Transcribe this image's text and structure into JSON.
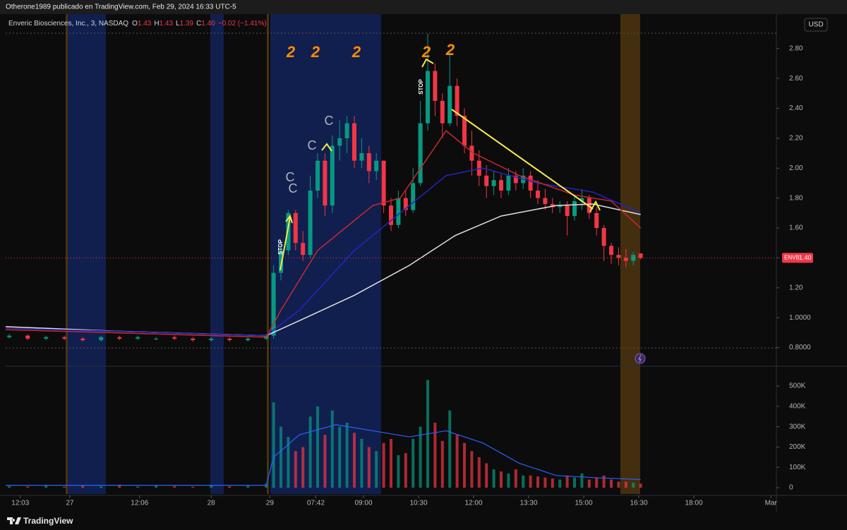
{
  "header": "Otherone1989 publicado en TradingView.com, Feb 29, 2024 16:33 UTC-5",
  "footer": "TradingView",
  "chart_data": [
    {
      "type": "candlestick",
      "legend_title": "Enveric Biosciences, Inc., 3, NASDAQ",
      "ohlc_legend": [
        {
          "key": "O",
          "value": "1.43"
        },
        {
          "key": "H",
          "value": "1.43"
        },
        {
          "key": "L",
          "value": "1.39"
        },
        {
          "key": "C",
          "value": "1.40"
        }
      ],
      "change": "−0.02 (−1.41%)",
      "currency": "USD",
      "symbol": "ENVB",
      "last_price": {
        "value": 1.4,
        "label": "1.40"
      },
      "annotations": [
        "2",
        "2",
        "2",
        "2",
        "2",
        "C",
        "C",
        "C",
        "C",
        "STOP",
        "STOP"
      ],
      "up_color": "#089981",
      "down_color": "#f23645",
      "x": [
        2,
        12,
        22,
        32,
        42,
        52,
        62,
        72,
        82,
        92,
        102,
        112,
        122,
        132,
        142,
        146,
        150,
        154,
        158,
        162,
        166,
        170,
        174,
        178,
        182,
        186,
        190,
        194,
        198,
        202,
        206,
        210,
        214,
        218,
        222,
        226,
        230,
        234,
        238,
        242,
        246,
        250,
        254,
        258,
        262,
        266,
        270,
        274,
        278,
        282,
        286,
        290,
        294,
        298,
        302,
        306,
        310,
        314,
        318,
        322,
        326,
        330,
        334,
        338,
        342,
        346
      ],
      "open": [
        0.87,
        0.88,
        0.86,
        0.87,
        0.86,
        0.85,
        0.87,
        0.86,
        0.86,
        0.87,
        0.86,
        0.85,
        0.86,
        0.85,
        0.86,
        0.88,
        1.3,
        1.45,
        1.7,
        1.5,
        1.42,
        1.85,
        2.05,
        1.75,
        2.15,
        2.2,
        2.3,
        2.05,
        2.1,
        1.98,
        2.05,
        1.75,
        1.62,
        1.8,
        1.72,
        1.9,
        2.3,
        2.65,
        2.45,
        2.3,
        2.55,
        2.35,
        2.15,
        2.05,
        1.95,
        1.88,
        1.92,
        1.85,
        1.95,
        1.9,
        1.95,
        1.85,
        1.8,
        1.76,
        1.74,
        1.75,
        1.68,
        1.78,
        1.8,
        1.7,
        1.6,
        1.48,
        1.42,
        1.4,
        1.38,
        1.43
      ],
      "high": [
        0.89,
        0.89,
        0.88,
        0.88,
        0.87,
        0.88,
        0.88,
        0.88,
        0.87,
        0.88,
        0.87,
        0.87,
        0.87,
        0.87,
        0.89,
        1.35,
        1.5,
        1.72,
        1.72,
        1.58,
        1.95,
        2.1,
        2.1,
        2.22,
        2.32,
        2.35,
        2.35,
        2.2,
        2.15,
        2.1,
        2.05,
        1.8,
        1.85,
        1.85,
        2.0,
        2.45,
        2.9,
        2.7,
        2.5,
        2.78,
        2.6,
        2.4,
        2.25,
        2.12,
        2.02,
        1.98,
        1.96,
        2.0,
        1.98,
        2.0,
        1.98,
        1.92,
        1.86,
        1.8,
        1.78,
        1.78,
        1.82,
        1.86,
        1.82,
        1.74,
        1.62,
        1.5,
        1.47,
        1.46,
        1.44,
        1.43
      ],
      "low": [
        0.86,
        0.85,
        0.85,
        0.85,
        0.84,
        0.84,
        0.85,
        0.85,
        0.85,
        0.85,
        0.84,
        0.84,
        0.84,
        0.84,
        0.85,
        0.86,
        1.25,
        1.42,
        1.45,
        1.38,
        1.4,
        1.8,
        1.68,
        1.7,
        2.05,
        2.1,
        2.0,
        2.0,
        1.9,
        1.92,
        1.7,
        1.58,
        1.6,
        1.68,
        1.7,
        1.88,
        2.25,
        2.35,
        2.2,
        2.28,
        2.28,
        2.1,
        1.95,
        1.88,
        1.8,
        1.82,
        1.8,
        1.82,
        1.85,
        1.86,
        1.8,
        1.76,
        1.72,
        1.7,
        1.7,
        1.55,
        1.65,
        1.72,
        1.66,
        1.55,
        1.38,
        1.36,
        1.35,
        1.34,
        1.35,
        1.39
      ],
      "close": [
        0.88,
        0.86,
        0.87,
        0.86,
        0.85,
        0.87,
        0.86,
        0.87,
        0.86,
        0.86,
        0.85,
        0.86,
        0.85,
        0.86,
        0.88,
        1.3,
        1.45,
        1.7,
        1.5,
        1.42,
        1.85,
        2.05,
        1.75,
        2.15,
        2.2,
        2.3,
        2.05,
        2.1,
        1.98,
        2.05,
        1.75,
        1.62,
        1.8,
        1.72,
        1.9,
        2.3,
        2.65,
        2.45,
        2.3,
        2.55,
        2.35,
        2.15,
        2.05,
        1.95,
        1.88,
        1.92,
        1.85,
        1.95,
        1.9,
        1.95,
        1.85,
        1.8,
        1.76,
        1.74,
        1.75,
        1.68,
        1.78,
        1.8,
        1.7,
        1.6,
        1.48,
        1.42,
        1.4,
        1.38,
        1.42,
        1.4
      ],
      "series": [
        {
          "color": "#e0e0e0",
          "x": [
            0,
            60,
            142,
            160,
            190,
            220,
            245,
            270,
            300,
            320,
            346
          ],
          "values": [
            0.94,
            0.91,
            0.88,
            0.98,
            1.15,
            1.35,
            1.55,
            1.68,
            1.75,
            1.76,
            1.69
          ]
        },
        {
          "color": "#2424c8",
          "x": [
            0,
            142,
            160,
            190,
            210,
            240,
            260,
            290,
            320,
            346
          ],
          "values": [
            0.93,
            0.88,
            1.05,
            1.45,
            1.65,
            1.95,
            2.0,
            1.9,
            1.84,
            1.7
          ]
        },
        {
          "color": "#c8282f",
          "x": [
            0,
            142,
            150,
            170,
            200,
            215,
            240,
            255,
            280,
            310,
            330,
            346
          ],
          "values": [
            0.92,
            0.87,
            1.05,
            1.45,
            1.75,
            1.8,
            2.25,
            2.1,
            1.95,
            1.82,
            1.78,
            1.6
          ]
        }
      ],
      "xlim": [
        0,
        420
      ],
      "xticks": [
        {
          "value": 8,
          "label": "12:03"
        },
        {
          "value": 35,
          "label": "27"
        },
        {
          "value": 73,
          "label": "12:06"
        },
        {
          "value": 112,
          "label": "28"
        },
        {
          "value": 144,
          "label": "29"
        },
        {
          "value": 169,
          "label": "07:42"
        },
        {
          "value": 195,
          "label": "09:00"
        },
        {
          "value": 225,
          "label": "10:30"
        },
        {
          "value": 255,
          "label": "12:00"
        },
        {
          "value": 285,
          "label": "13:30"
        },
        {
          "value": 315,
          "label": "15:00"
        },
        {
          "value": 345,
          "label": "16:30"
        },
        {
          "value": 375,
          "label": "18:00"
        },
        {
          "value": 417,
          "label": "Mar"
        }
      ],
      "ylim": [
        0.68,
        3.03
      ],
      "yticks": [
        {
          "value": 0.8,
          "label": "0.8000"
        },
        {
          "value": 1.0,
          "label": "1.0000"
        },
        {
          "value": 1.2,
          "label": "1.20"
        },
        {
          "value": 1.4,
          "label": "1.40"
        },
        {
          "value": 1.6,
          "label": "1.60"
        },
        {
          "value": 1.8,
          "label": "1.80"
        },
        {
          "value": 2.0,
          "label": "2.00"
        },
        {
          "value": 2.2,
          "label": "2.20"
        },
        {
          "value": 2.4,
          "label": "2.40"
        },
        {
          "value": 2.6,
          "label": "2.60"
        },
        {
          "value": 2.8,
          "label": "2.80"
        }
      ],
      "grid": false
    },
    {
      "type": "bar",
      "x": [
        2,
        12,
        22,
        32,
        42,
        52,
        62,
        72,
        82,
        92,
        102,
        112,
        122,
        132,
        142,
        146,
        150,
        154,
        158,
        162,
        166,
        170,
        174,
        178,
        182,
        186,
        190,
        194,
        198,
        202,
        206,
        210,
        214,
        218,
        222,
        226,
        230,
        234,
        238,
        242,
        246,
        250,
        254,
        258,
        262,
        266,
        270,
        274,
        278,
        282,
        286,
        290,
        294,
        298,
        302,
        306,
        310,
        314,
        318,
        322,
        326,
        330,
        334,
        338,
        342,
        346
      ],
      "values": [
        8000,
        6000,
        12000,
        5000,
        9000,
        7000,
        15000,
        6000,
        10000,
        8000,
        5000,
        12000,
        7000,
        9000,
        20000,
        420000,
        300000,
        250000,
        180000,
        200000,
        350000,
        400000,
        260000,
        380000,
        300000,
        320000,
        270000,
        240000,
        200000,
        180000,
        220000,
        240000,
        160000,
        170000,
        240000,
        300000,
        530000,
        320000,
        230000,
        380000,
        260000,
        220000,
        180000,
        150000,
        120000,
        90000,
        80000,
        70000,
        90000,
        60000,
        60000,
        55000,
        50000,
        45000,
        40000,
        60000,
        50000,
        70000,
        40000,
        50000,
        60000,
        40000,
        30000,
        30000,
        25000,
        20000
      ],
      "series": [
        {
          "color": "#2962ff",
          "x": [
            0,
            142,
            146,
            160,
            180,
            200,
            220,
            240,
            260,
            280,
            300,
            320,
            346
          ],
          "values": [
            12000,
            12000,
            150000,
            260000,
            310000,
            280000,
            250000,
            280000,
            220000,
            120000,
            60000,
            50000,
            40000
          ]
        }
      ],
      "ylim": [
        -31000,
        594000
      ],
      "yticks": [
        0,
        {
          "value": 100000,
          "label": "100K"
        },
        {
          "value": 200000,
          "label": "200K"
        },
        {
          "value": 300000,
          "label": "300K"
        },
        {
          "value": 400000,
          "label": "400K"
        },
        {
          "value": 500000,
          "label": "500K"
        }
      ]
    }
  ]
}
